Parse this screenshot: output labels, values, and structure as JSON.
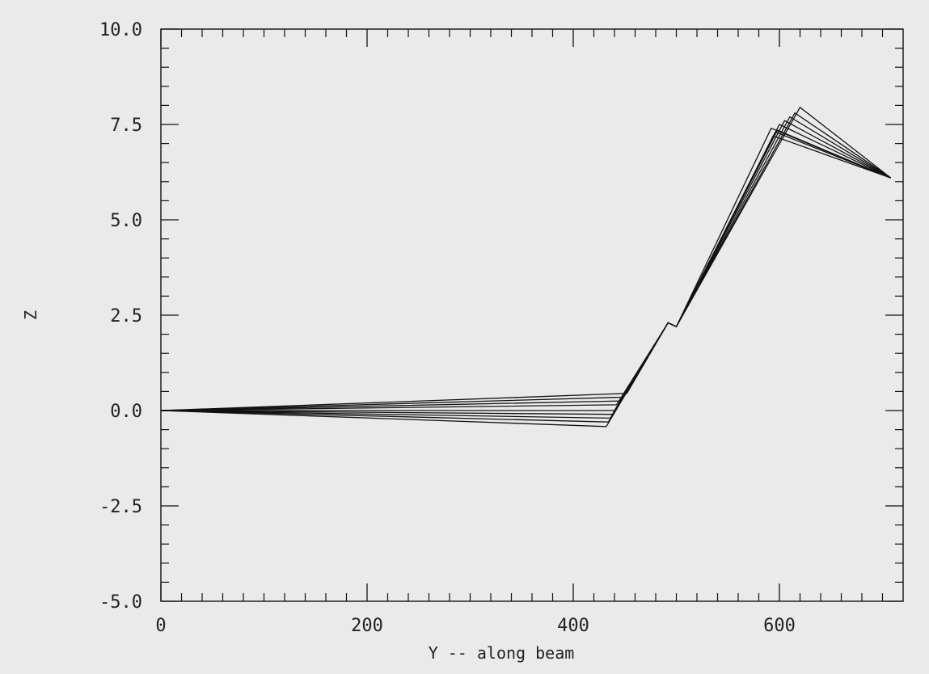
{
  "chart_data": {
    "type": "line",
    "title": "",
    "xlabel": "Y -- along beam",
    "ylabel": "Z",
    "xlim": [
      0,
      720
    ],
    "ylim": [
      -5.0,
      10.0
    ],
    "xticks": [
      0,
      200,
      400,
      600
    ],
    "xtick_labels": [
      "0",
      "200",
      "400",
      "600"
    ],
    "yticks": [
      -5.0,
      -2.5,
      0.0,
      2.5,
      5.0,
      7.5,
      10.0
    ],
    "ytick_labels": [
      "-5.0",
      "-2.5",
      "0.0",
      "2.5",
      "5.0",
      "7.5",
      "10.0"
    ],
    "grid": false,
    "legend": "none",
    "line_color": "#111111",
    "series": [
      {
        "x": [
          0,
          452,
          492,
          500,
          620,
          708
        ],
        "y": [
          0,
          0.45,
          2.3,
          2.2,
          7.95,
          6.1
        ]
      },
      {
        "x": [
          0,
          448,
          492,
          500,
          615,
          708
        ],
        "y": [
          0,
          0.35,
          2.3,
          2.2,
          7.8,
          6.1
        ]
      },
      {
        "x": [
          0,
          445,
          492,
          500,
          610,
          708
        ],
        "y": [
          0,
          0.25,
          2.3,
          2.2,
          7.7,
          6.1
        ]
      },
      {
        "x": [
          0,
          442,
          492,
          500,
          605,
          708
        ],
        "y": [
          0,
          0.15,
          2.3,
          2.2,
          7.6,
          6.1
        ]
      },
      {
        "x": [
          0,
          440,
          492,
          500,
          600,
          708
        ],
        "y": [
          0,
          0.0,
          2.3,
          2.2,
          7.5,
          6.1
        ]
      },
      {
        "x": [
          0,
          438,
          492,
          500,
          598,
          708
        ],
        "y": [
          0,
          -0.1,
          2.3,
          2.2,
          7.35,
          6.1
        ]
      },
      {
        "x": [
          0,
          436,
          492,
          500,
          596,
          708
        ],
        "y": [
          0,
          -0.2,
          2.3,
          2.2,
          7.3,
          6.1
        ]
      },
      {
        "x": [
          0,
          434,
          492,
          500,
          594,
          708
        ],
        "y": [
          0,
          -0.3,
          2.3,
          2.2,
          7.2,
          6.1
        ]
      },
      {
        "x": [
          0,
          432,
          492,
          500,
          592,
          708
        ],
        "y": [
          0,
          -0.42,
          2.3,
          2.2,
          7.4,
          6.1
        ]
      }
    ]
  }
}
